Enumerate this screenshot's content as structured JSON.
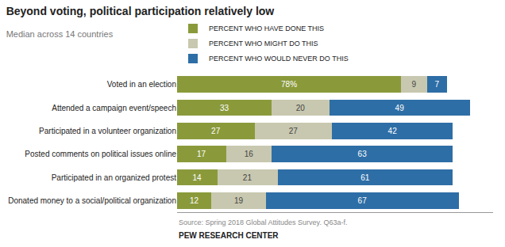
{
  "chart_data": {
    "type": "bar",
    "orientation": "horizontal",
    "stacked": true,
    "title": "Beyond voting, political participation relatively low",
    "subtitle": "Median across 14 countries",
    "annotations": [
      "Source: Spring 2018 Global Attitudes Survey. Q63a-f.",
      "PEW RESEARCH CENTER"
    ],
    "categories": [
      "Voted in an election",
      "Attended a campaign event/speech",
      "Participated in a volunteer organization",
      "Posted comments on political issues online",
      "Participated in an organized protest",
      "Donated money to a social/political organization"
    ],
    "series": [
      {
        "name": "PERCENT WHO HAVE DONE THIS",
        "color": "#8a9a3b",
        "values": [
          78,
          33,
          27,
          17,
          14,
          12
        ],
        "value_labels": [
          "78%",
          "33",
          "27",
          "17",
          "14",
          "12"
        ]
      },
      {
        "name": "PERCENT WHO MIGHT DO THIS",
        "color": "#c8c8b0",
        "values": [
          9,
          20,
          27,
          16,
          21,
          19
        ]
      },
      {
        "name": "PERCENT WHO WOULD NEVER DO THIS",
        "color": "#2e6ea6",
        "values": [
          7,
          49,
          42,
          63,
          61,
          67
        ]
      }
    ],
    "xlim": [
      0,
      110
    ],
    "data_labels": true,
    "tick_labels": "y",
    "grid": false,
    "legend": "top"
  }
}
